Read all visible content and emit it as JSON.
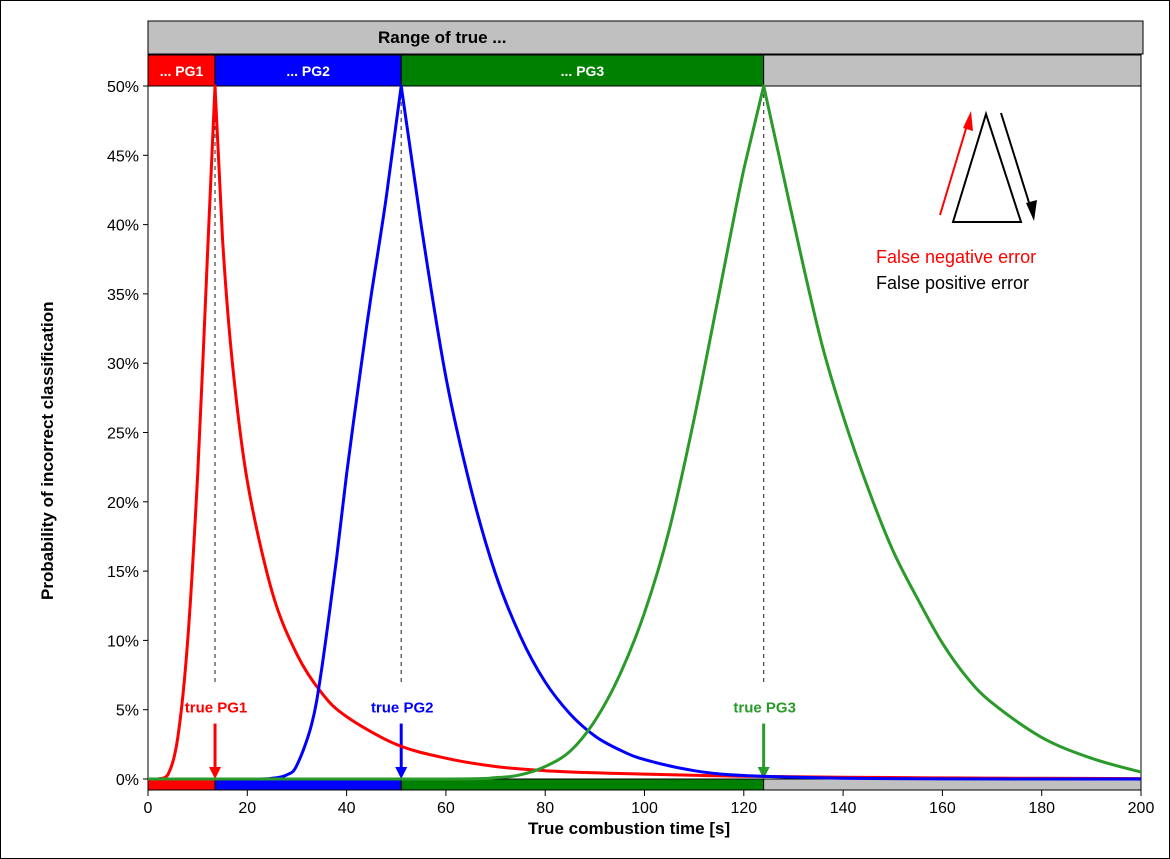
{
  "chart_data": {
    "type": "line",
    "xlabel": "True combustion time [s]",
    "ylabel": "Probability of incorrect classification",
    "xlim": [
      0,
      200
    ],
    "ylim": [
      0,
      0.5
    ],
    "x_ticks": [
      0,
      20,
      40,
      60,
      80,
      100,
      120,
      140,
      160,
      180,
      200
    ],
    "y_ticks": [
      0,
      0.05,
      0.1,
      0.15,
      0.2,
      0.25,
      0.3,
      0.35,
      0.4,
      0.45,
      0.5
    ],
    "y_tick_labels": [
      "0%",
      "5%",
      "10%",
      "15%",
      "20%",
      "25%",
      "30%",
      "35%",
      "40%",
      "45%",
      "50%"
    ],
    "grid": false,
    "range_header": "Range of true ...",
    "ranges": [
      {
        "label": "... PG1",
        "start": 0,
        "end": 13.5,
        "color": "#ff0000"
      },
      {
        "label": "... PG2",
        "start": 13.5,
        "end": 51,
        "color": "#0000ff"
      },
      {
        "label": "... PG3",
        "start": 51,
        "end": 124,
        "color": "#008000"
      },
      {
        "label": "",
        "start": 124,
        "end": 200,
        "color": "#c0c0c0"
      }
    ],
    "markers": [
      {
        "label": "true PG1",
        "x": 13.5,
        "color": "#ff0000"
      },
      {
        "label": "true PG2",
        "x": 51,
        "color": "#0000ff"
      },
      {
        "label": "true PG3",
        "x": 124,
        "color": "#2a9a2a"
      }
    ],
    "series": [
      {
        "color": "#ff0000",
        "x": [
          0,
          2,
          4,
          6,
          8,
          10,
          12,
          13.5,
          15,
          17,
          20,
          25,
          30,
          35,
          40,
          50,
          60,
          70,
          80,
          90,
          100,
          120,
          140,
          160,
          180,
          200
        ],
        "y": [
          0,
          0,
          0.003,
          0.03,
          0.1,
          0.22,
          0.38,
          0.5,
          0.39,
          0.3,
          0.215,
          0.135,
          0.09,
          0.062,
          0.045,
          0.025,
          0.015,
          0.009,
          0.006,
          0.0045,
          0.0035,
          0.002,
          0.0013,
          0.0008,
          0.0005,
          0.0003
        ]
      },
      {
        "color": "#0000ff",
        "x": [
          0,
          20,
          25,
          28,
          30,
          33,
          35,
          38,
          40,
          43,
          45,
          48,
          51,
          55,
          60,
          65,
          70,
          75,
          80,
          85,
          90,
          95,
          100,
          110,
          120,
          140,
          160,
          200
        ],
        "y": [
          0,
          0,
          0.0005,
          0.003,
          0.01,
          0.04,
          0.08,
          0.16,
          0.22,
          0.3,
          0.35,
          0.42,
          0.5,
          0.4,
          0.29,
          0.21,
          0.148,
          0.103,
          0.07,
          0.047,
          0.031,
          0.021,
          0.014,
          0.006,
          0.0025,
          0.0006,
          0.0001,
          0
        ]
      },
      {
        "color": "#2a9a2a",
        "x": [
          0,
          60,
          70,
          75,
          80,
          85,
          90,
          95,
          100,
          105,
          110,
          115,
          120,
          124,
          128,
          132,
          136,
          140,
          145,
          150,
          155,
          160,
          165,
          170,
          180,
          190,
          200
        ],
        "y": [
          0,
          0,
          0.001,
          0.003,
          0.009,
          0.02,
          0.042,
          0.075,
          0.12,
          0.18,
          0.26,
          0.35,
          0.44,
          0.5,
          0.435,
          0.37,
          0.31,
          0.262,
          0.21,
          0.165,
          0.13,
          0.098,
          0.073,
          0.055,
          0.03,
          0.015,
          0.005
        ]
      }
    ],
    "legend": [
      {
        "label": "False negative error",
        "color": "#ff0000"
      },
      {
        "label": "False positive error",
        "color": "#000000"
      }
    ]
  }
}
